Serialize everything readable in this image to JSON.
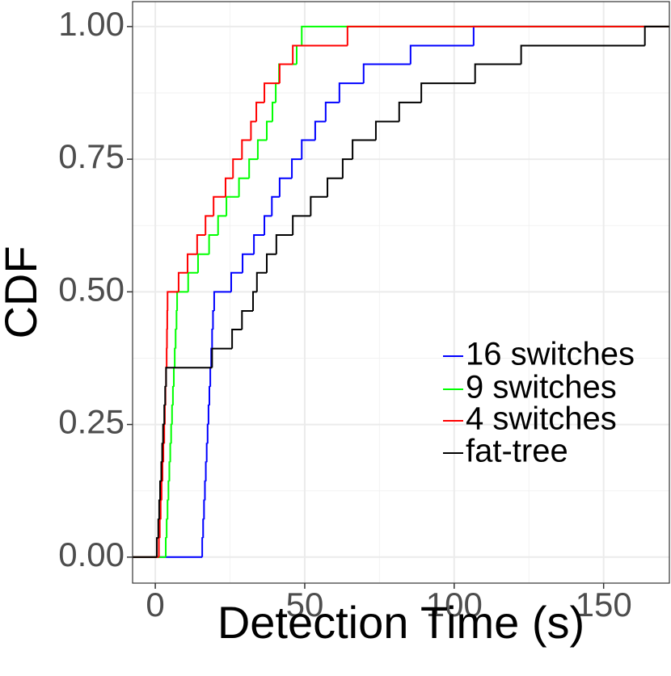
{
  "chart_data": {
    "type": "step",
    "x_label": "Detection Time (s)",
    "y_label": "CDF",
    "xlim": [
      -7.6,
      172
    ],
    "ylim": [
      -0.049,
      1.047
    ],
    "xticks": [
      0,
      50,
      100,
      150
    ],
    "yticks": [
      {
        "value": 0,
        "label": "0.00"
      },
      0.25,
      {
        "value": 0.5,
        "label": "0.50"
      },
      0.75,
      {
        "value": 1,
        "label": "1.00"
      }
    ],
    "xminor": [
      25,
      75,
      125
    ],
    "yminor": [
      0.125,
      0.375,
      0.625,
      0.875
    ],
    "grid": true,
    "series": [
      {
        "name": "16 switches",
        "color": "#0000ff",
        "x": [
          15.7,
          16,
          16.3,
          16.6,
          16.9,
          17.2,
          17.5,
          17.8,
          18.1,
          18.4,
          18.7,
          19,
          19.3,
          19.7,
          25.4,
          29.2,
          33,
          36.5,
          39,
          41.6,
          45.7,
          49,
          53.5,
          57,
          61.6,
          69.7,
          85.4,
          106.5
        ],
        "values": [
          0.036,
          0.071,
          0.107,
          0.143,
          0.179,
          0.214,
          0.25,
          0.286,
          0.321,
          0.357,
          0.393,
          0.429,
          0.464,
          0.5,
          0.536,
          0.571,
          0.607,
          0.643,
          0.679,
          0.714,
          0.75,
          0.786,
          0.821,
          0.857,
          0.893,
          0.929,
          0.964,
          1
        ]
      },
      {
        "name": "9 switches",
        "color": "#00ff00",
        "x": [
          3.5,
          3.8,
          4.1,
          4.4,
          4.7,
          5,
          5.3,
          5.6,
          5.9,
          6.2,
          6.5,
          6.8,
          7.1,
          7.3,
          11,
          14.3,
          18,
          21,
          23.8,
          28,
          31.4,
          34.3,
          37.3,
          39.2,
          40.3,
          41.4,
          47.3,
          49
        ],
        "values": [
          0.036,
          0.071,
          0.107,
          0.143,
          0.179,
          0.214,
          0.25,
          0.286,
          0.321,
          0.357,
          0.393,
          0.429,
          0.464,
          0.5,
          0.536,
          0.571,
          0.607,
          0.643,
          0.679,
          0.714,
          0.75,
          0.786,
          0.821,
          0.857,
          0.893,
          0.929,
          0.964,
          1
        ]
      },
      {
        "name": "4 switches",
        "color": "#ff0000",
        "x": [
          1.2,
          1.5,
          1.8,
          2.1,
          2.4,
          2.7,
          3,
          3.2,
          3.4,
          3.6,
          3.8,
          3.9,
          4,
          4.1,
          7.8,
          10.8,
          14,
          16.8,
          19.5,
          23.5,
          26,
          29,
          32,
          33.8,
          36.5,
          41.6,
          46,
          64.3
        ],
        "values": [
          0.036,
          0.071,
          0.107,
          0.143,
          0.179,
          0.214,
          0.25,
          0.286,
          0.321,
          0.357,
          0.393,
          0.429,
          0.464,
          0.5,
          0.536,
          0.571,
          0.607,
          0.643,
          0.679,
          0.714,
          0.75,
          0.786,
          0.821,
          0.857,
          0.893,
          0.929,
          0.964,
          1
        ]
      },
      {
        "name": "fat-tree",
        "color": "#000000",
        "x": [
          0.5,
          1,
          1.3,
          1.6,
          2,
          2.3,
          2.6,
          3,
          3.3,
          3.6,
          19,
          25.7,
          29,
          32.7,
          34,
          37.3,
          40.5,
          46,
          52,
          57.6,
          62.7,
          66,
          73.8,
          81.6,
          89,
          107,
          122.4,
          163.8
        ],
        "values": [
          0.036,
          0.071,
          0.107,
          0.143,
          0.179,
          0.214,
          0.25,
          0.286,
          0.321,
          0.357,
          0.393,
          0.429,
          0.464,
          0.5,
          0.536,
          0.571,
          0.607,
          0.643,
          0.679,
          0.714,
          0.75,
          0.786,
          0.821,
          0.857,
          0.893,
          0.929,
          0.964,
          1
        ]
      }
    ]
  }
}
